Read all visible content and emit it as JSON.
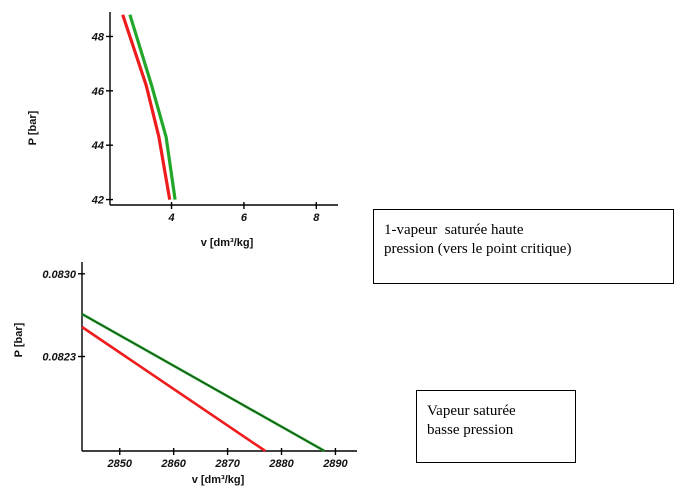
{
  "colors": {
    "red_series": "#ee1c1c",
    "green_series": "#22a72a",
    "axis": "#000000"
  },
  "chart_data": [
    {
      "type": "line",
      "ylabel": "P [bar]",
      "xlabel": "v [dm³/kg]",
      "xlim": [
        2.3,
        8.6
      ],
      "ylim": [
        41.8,
        48.9
      ],
      "xticks": [
        4,
        6,
        8
      ],
      "xtick_labels": [
        "4",
        "6",
        "8"
      ],
      "yticks": [
        42,
        44,
        46,
        48
      ],
      "ytick_labels": [
        "42",
        "44",
        "46",
        "48"
      ],
      "series": [
        {
          "color": "red",
          "x": [
            2.65,
            3.3,
            3.65,
            3.95
          ],
          "y": [
            48.8,
            46.2,
            44.3,
            42.0
          ]
        },
        {
          "color": "green",
          "x": [
            2.85,
            3.45,
            3.85,
            4.1
          ],
          "y": [
            48.8,
            46.2,
            44.3,
            42.0
          ]
        }
      ]
    },
    {
      "type": "line",
      "ylabel": "P [bar]",
      "xlabel": "v [dm³/kg]",
      "xlim": [
        2843,
        2894
      ],
      "ylim": [
        0.0815,
        0.0831
      ],
      "xticks": [
        2850,
        2860,
        2870,
        2880,
        2890
      ],
      "xtick_labels": [
        "2850",
        "2860",
        "2870",
        "2880",
        "2890"
      ],
      "yticks": [
        0.0823,
        0.083
      ],
      "ytick_labels": [
        "0.0823",
        "0.0830"
      ],
      "series": [
        {
          "color": "green",
          "x": [
            2843,
            2888
          ],
          "y": [
            0.08266,
            0.0815
          ]
        },
        {
          "color": "red",
          "x": [
            2843,
            2877
          ],
          "y": [
            0.08255,
            0.0815
          ]
        }
      ]
    }
  ],
  "notes": {
    "top": {
      "line1": "1-vapeur  saturée haute",
      "line2": "pression (vers le point critique)"
    },
    "bottom": {
      "line1": "Vapeur saturée",
      "line2": "basse pression"
    }
  }
}
